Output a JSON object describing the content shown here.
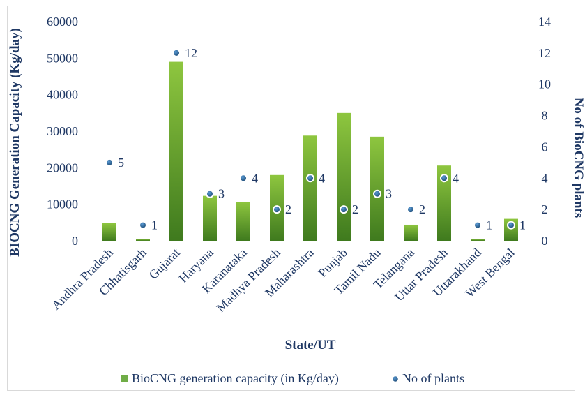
{
  "chart_data": {
    "type": "bar",
    "title": "",
    "xlabel": "State/UT",
    "ylabel": "BIOCNG Generation Capacity (Kg/day)",
    "y2label": "No of BioCNG plants",
    "ylim": [
      0,
      60000
    ],
    "y2lim": [
      0,
      14
    ],
    "yticks": [
      "0",
      "10000",
      "20000",
      "30000",
      "40000",
      "50000",
      "60000"
    ],
    "y2ticks": [
      "0",
      "2",
      "4",
      "6",
      "8",
      "10",
      "12",
      "14"
    ],
    "grid": false,
    "legend_position": "bottom",
    "categories": [
      "Andhra Pradesh",
      "Chhatisgarh",
      "Gujarat",
      "Haryana",
      "Karanataka",
      "Madhya Pradesh",
      "Maharashtra",
      "Punjab",
      "Tamil Nadu",
      "Telangana",
      "Uttar Pradesh",
      "Uttarakhand",
      "West Bengal"
    ],
    "series": [
      {
        "name": "BioCNG generation capacity (in Kg/day)",
        "type": "bar",
        "axis": "left",
        "color": "#70ad47",
        "values": [
          4800,
          500,
          49000,
          12300,
          10600,
          18000,
          28800,
          35000,
          28500,
          4400,
          20600,
          500,
          6000
        ]
      },
      {
        "name": "No of plants",
        "type": "scatter",
        "axis": "right",
        "color": "#2e75b6",
        "values": [
          5,
          1,
          12,
          3,
          4,
          2,
          4,
          2,
          3,
          2,
          4,
          1,
          1
        ],
        "labels": [
          "5",
          "1",
          "12",
          "3",
          "4",
          "2",
          "4",
          "2",
          "3",
          "2",
          "4",
          "1",
          "1"
        ]
      }
    ]
  }
}
